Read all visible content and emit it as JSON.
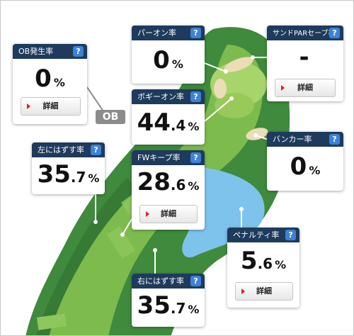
{
  "course_map": {
    "ob_label": "OB"
  },
  "stats": {
    "ob_rate": {
      "title": "OB発生率",
      "whole": "0",
      "decimal": "",
      "unit": "%",
      "detail_label": "詳細"
    },
    "par_on": {
      "title": "パーオン率",
      "whole": "0",
      "decimal": "",
      "unit": "%"
    },
    "sand_par_save": {
      "title": "サンドPARセーブ率",
      "whole": "-",
      "decimal": "",
      "unit": "",
      "detail_label": "詳細"
    },
    "bogey_on": {
      "title": "ボギーオン率",
      "whole": "44",
      "decimal": ".4",
      "unit": "%"
    },
    "bunker": {
      "title": "バンカー率",
      "whole": "0",
      "decimal": "",
      "unit": "%"
    },
    "miss_left": {
      "title": "左にはずす率",
      "whole": "35",
      "decimal": ".7",
      "unit": "%"
    },
    "fw_keep": {
      "title": "FWキープ率",
      "whole": "28",
      "decimal": ".6",
      "unit": "%",
      "detail_label": "詳細"
    },
    "penalty": {
      "title": "ペナルティ率",
      "whole": "5",
      "decimal": ".6",
      "unit": "%",
      "detail_label": "詳細"
    },
    "miss_right": {
      "title": "右にはずす率",
      "whole": "35",
      "decimal": ".7",
      "unit": "%"
    }
  },
  "help_label": "?",
  "colors": {
    "header": "#1e3a5c",
    "help": "#3c82d6",
    "rough": "#3f8a3c",
    "fairway": "#7dbb4e",
    "green": "#a8d46c",
    "water": "#7ec3ec",
    "bunker": "#ecdcb8",
    "ob_badge": "#8c8c8c"
  }
}
